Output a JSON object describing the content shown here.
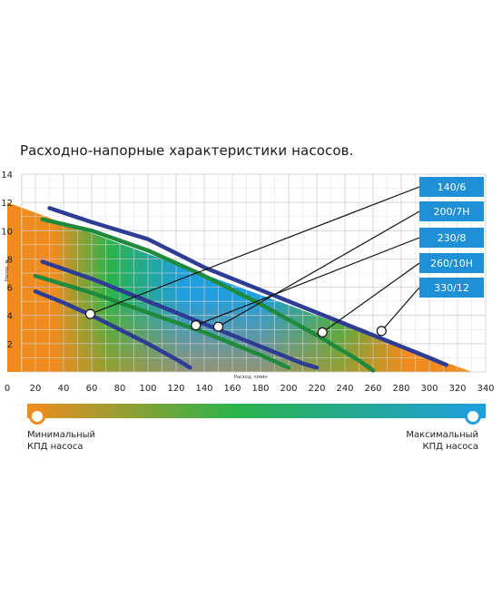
{
  "chart_data": {
    "type": "line",
    "title": "Расходно-напорные характеристики насосов.",
    "xlabel": "Расход, л/мин",
    "ylabel": "Напор, м",
    "xlim": [
      0,
      340
    ],
    "ylim": [
      0,
      14
    ],
    "x_ticks": [
      "0",
      "20",
      "40",
      "60",
      "80",
      "100",
      "120",
      "140",
      "160",
      "180",
      "200",
      "220",
      "240",
      "260",
      "280",
      "300",
      "320",
      "340"
    ],
    "y_ticks": [
      "2",
      "4",
      "6",
      "8",
      "10",
      "12",
      "14"
    ],
    "grid": true,
    "legend_position": "right",
    "series": [
      {
        "name": "140/6",
        "color": "#2e3d93",
        "x": [
          20,
          40,
          60,
          80,
          100,
          120,
          130
        ],
        "y": [
          5.7,
          4.9,
          4.0,
          3.0,
          2.0,
          0.9,
          0.3
        ],
        "marker": [
          59,
          4.1
        ]
      },
      {
        "name": "200/7H",
        "color": "#1e8a3c",
        "x": [
          20,
          60,
          100,
          140,
          180,
          200
        ],
        "y": [
          6.8,
          5.6,
          4.2,
          2.8,
          1.2,
          0.3
        ],
        "marker": [
          150,
          3.2
        ]
      },
      {
        "name": "230/8",
        "color": "#2e3d93",
        "x": [
          25,
          60,
          100,
          140,
          180,
          210,
          220
        ],
        "y": [
          7.8,
          6.6,
          5.0,
          3.4,
          1.8,
          0.6,
          0.3
        ],
        "marker": [
          134,
          3.3
        ]
      },
      {
        "name": "260/10H",
        "color": "#1e8a3c",
        "x": [
          25,
          60,
          100,
          140,
          180,
          220,
          250,
          260
        ],
        "y": [
          10.8,
          10.0,
          8.6,
          6.8,
          4.8,
          2.6,
          0.8,
          0.1
        ],
        "marker": [
          224,
          2.8
        ]
      },
      {
        "name": "330/12",
        "color": "#2e3d93",
        "x": [
          30,
          60,
          100,
          140,
          180,
          220,
          260,
          300,
          312
        ],
        "y": [
          11.6,
          10.6,
          9.4,
          7.4,
          5.8,
          4.2,
          2.6,
          1.0,
          0.5
        ],
        "marker": [
          266,
          2.9
        ]
      }
    ]
  },
  "efficiency_scale": {
    "min_label_line1": "Минимальный",
    "min_label_line2": "КПД насоса",
    "max_label_line1": "Максимальный",
    "max_label_line2": "КПД насоса",
    "color_low": "#f08c1e",
    "color_mid": "#2bb34a",
    "color_high": "#1f9ee0"
  },
  "colors": {
    "legend_box": "#1f8fd6",
    "blue_curve": "#2e3d93",
    "green_curve": "#1e8a3c",
    "connector": "#111111"
  }
}
